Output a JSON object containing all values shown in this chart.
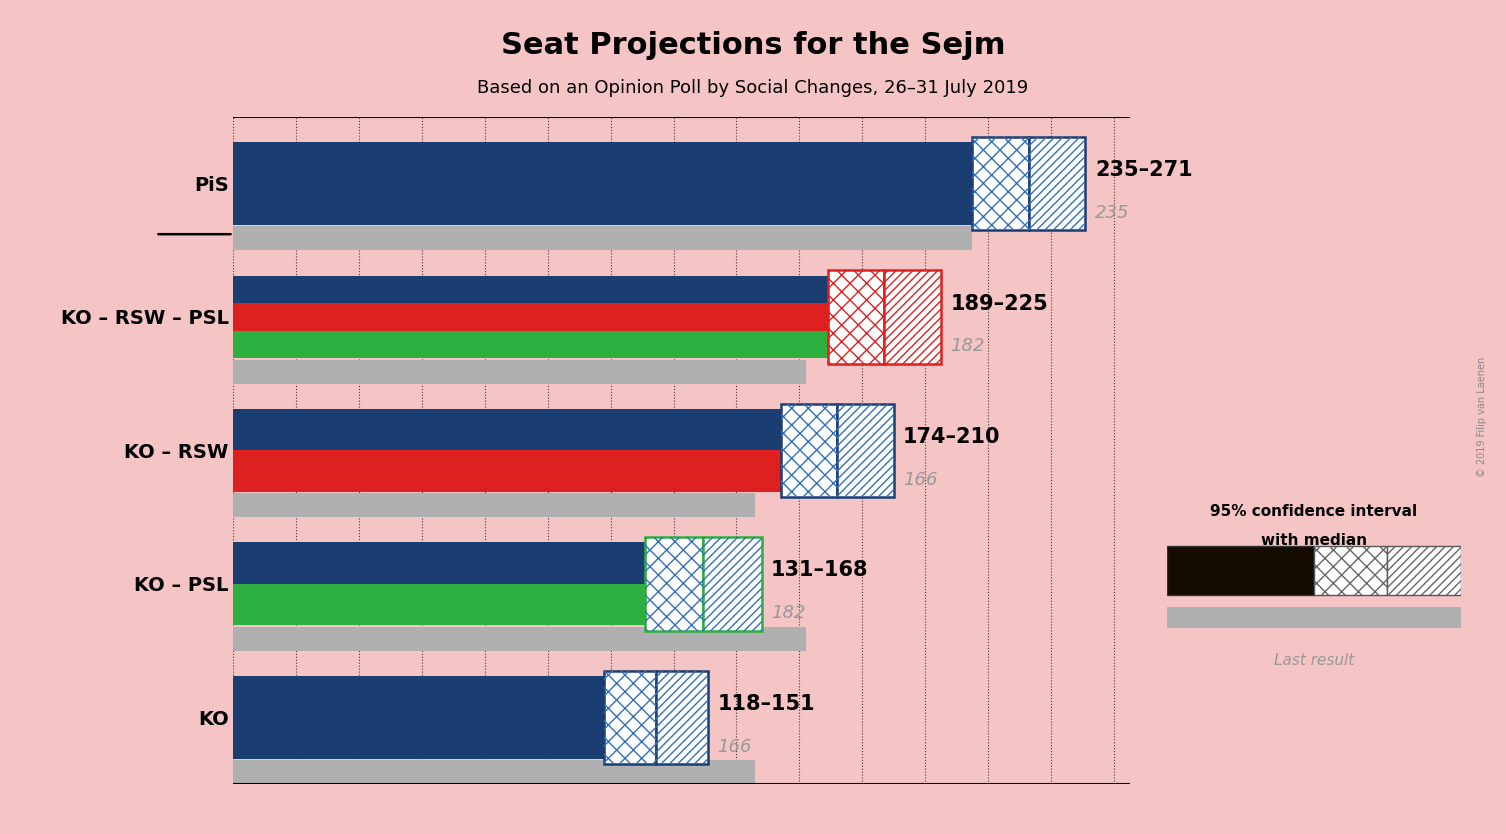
{
  "title": "Seat Projections for the Sejm",
  "subtitle": "Based on an Opinion Poll by Social Changes, 26–31 July 2019",
  "copyright": "© 2019 Filip van Laenen",
  "bg_color": "#f5c4c4",
  "categories": [
    "PiS",
    "KO – RSW – PSL",
    "KO – RSW",
    "KO – PSL",
    "KO"
  ],
  "medians": [
    235,
    189,
    174,
    131,
    118
  ],
  "ci_high": [
    271,
    225,
    210,
    168,
    151
  ],
  "last_results": [
    235,
    182,
    166,
    182,
    166
  ],
  "range_labels": [
    "235–271",
    "189–225",
    "174–210",
    "131–168",
    "118–151"
  ],
  "coalition_colors": [
    [
      "#1a3d72"
    ],
    [
      "#1a3d72",
      "#dd2020",
      "#2db040"
    ],
    [
      "#1a3d72",
      "#dd2020"
    ],
    [
      "#1a3d72",
      "#2db040"
    ],
    [
      "#1a3d72"
    ]
  ],
  "ci_border_colors": [
    "#1a3d72",
    "#dd2020",
    "#1a3d72",
    "#2db040",
    "#1a3d72"
  ],
  "ci_cross_colors": [
    "#3370bb",
    "#dd2020",
    "#3370bb",
    "#3370bb",
    "#3370bb"
  ],
  "last_result_color": "#b0b0b0",
  "label_color": "#999999",
  "xmax": 285
}
